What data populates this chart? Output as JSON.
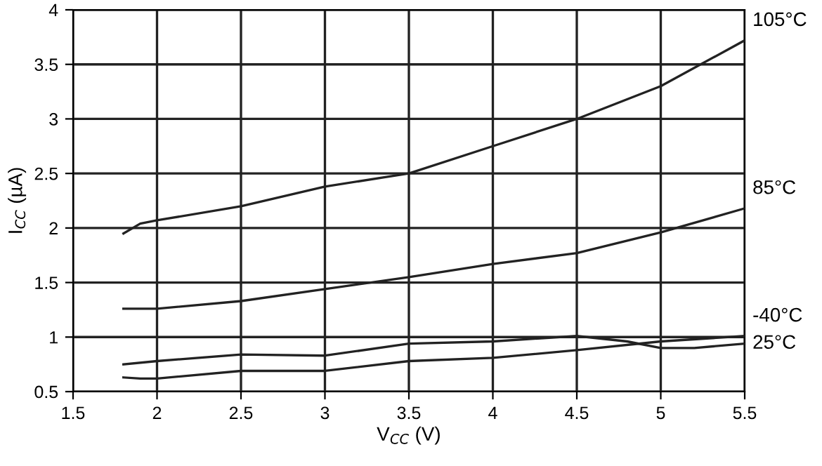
{
  "chart_data": {
    "type": "line",
    "xlabel": "V$_{CC}$ (V)",
    "ylabel": "I$_{CC}$ (µA)",
    "xlim": [
      1.5,
      5.5
    ],
    "xticks": [
      1.5,
      2,
      2.5,
      3,
      3.5,
      4,
      4.5,
      5,
      5.5
    ],
    "ylim": [
      0.5,
      4
    ],
    "yticks": [
      0.5,
      1,
      1.5,
      2,
      2.5,
      3,
      3.5,
      4
    ],
    "grid": true,
    "legend": false,
    "marker": "none",
    "line_style": "solid",
    "series": [
      {
        "name": "105°C",
        "color": "#222222",
        "x": [
          1.8,
          1.9,
          2,
          2.5,
          3,
          3.5,
          4,
          4.5,
          5,
          5.5
        ],
        "values": [
          1.95,
          2.04,
          2.07,
          2.2,
          2.38,
          2.5,
          2.75,
          3.0,
          3.3,
          3.72
        ]
      },
      {
        "name": "85°C",
        "color": "#222222",
        "x": [
          1.8,
          2,
          2.5,
          3,
          3.5,
          4,
          4.5,
          5,
          5.5
        ],
        "values": [
          1.26,
          1.26,
          1.33,
          1.44,
          1.55,
          1.67,
          1.77,
          1.96,
          2.18
        ]
      },
      {
        "name": "-40°C",
        "color": "#222222",
        "x": [
          1.8,
          1.9,
          2,
          2.5,
          3,
          3.5,
          4,
          4.5,
          5,
          5.5
        ],
        "values": [
          0.63,
          0.62,
          0.62,
          0.69,
          0.69,
          0.78,
          0.81,
          0.88,
          0.96,
          1.01
        ]
      },
      {
        "name": "25°C",
        "color": "#222222",
        "x": [
          1.8,
          2,
          2.5,
          3,
          3.5,
          4,
          4.5,
          4.8,
          5,
          5.2,
          5.5
        ],
        "values": [
          0.75,
          0.78,
          0.84,
          0.83,
          0.94,
          0.96,
          1.01,
          0.96,
          0.9,
          0.9,
          0.94
        ]
      }
    ]
  }
}
